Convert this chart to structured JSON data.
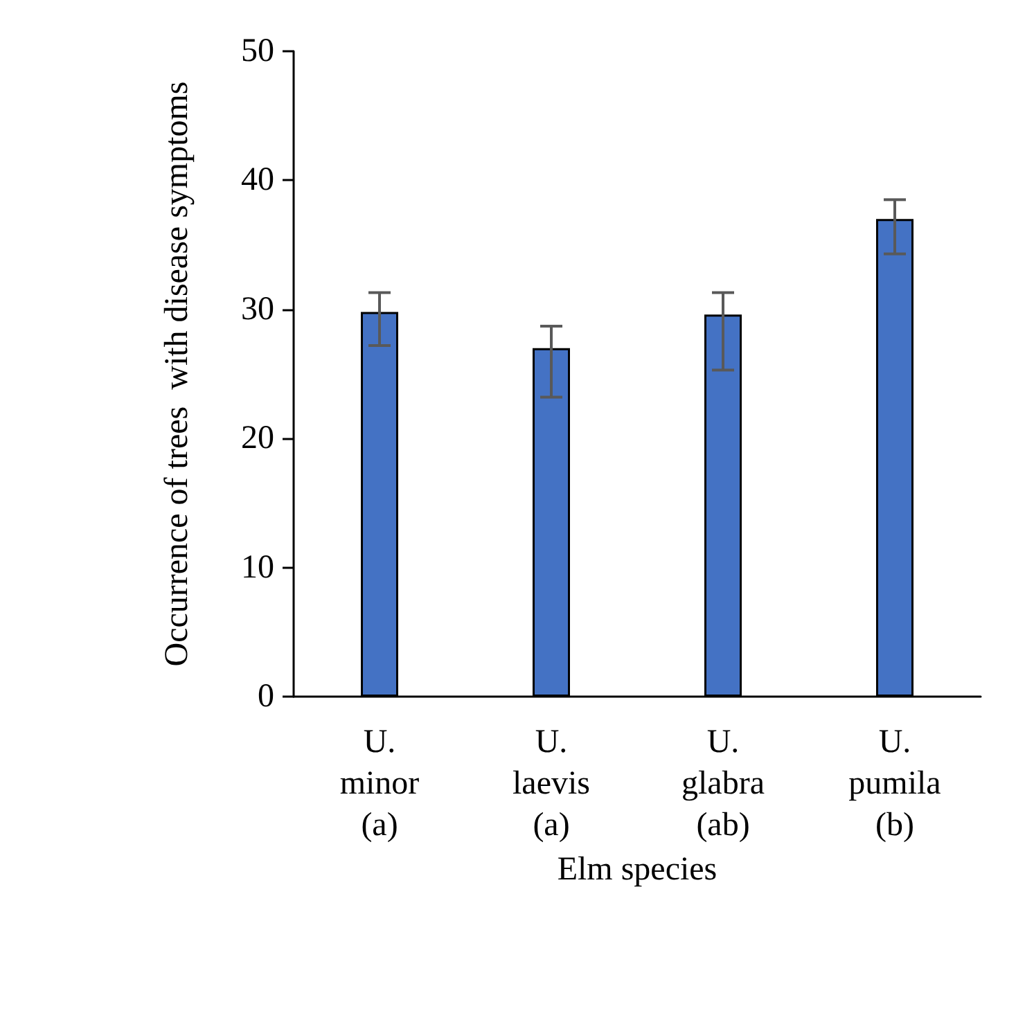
{
  "chart_data": {
    "type": "bar",
    "xlabel": "Elm species",
    "ylabel": "Occurrence of trees  with disease symptoms",
    "categories": [
      "U. minor (a)",
      "U. laevis (a)",
      "U. glabra (ab)",
      "U. pumila (b)"
    ],
    "values": [
      29.8,
      27.0,
      29.6,
      37.0
    ],
    "errors": [
      [
        27.2,
        31.3
      ],
      [
        23.2,
        28.7
      ],
      [
        25.3,
        31.3
      ],
      [
        34.3,
        38.5
      ]
    ],
    "color": "#4472c4",
    "ylim": [
      0,
      50
    ],
    "yticks": [
      0,
      10,
      20,
      30,
      40,
      50
    ],
    "grid": false
  }
}
